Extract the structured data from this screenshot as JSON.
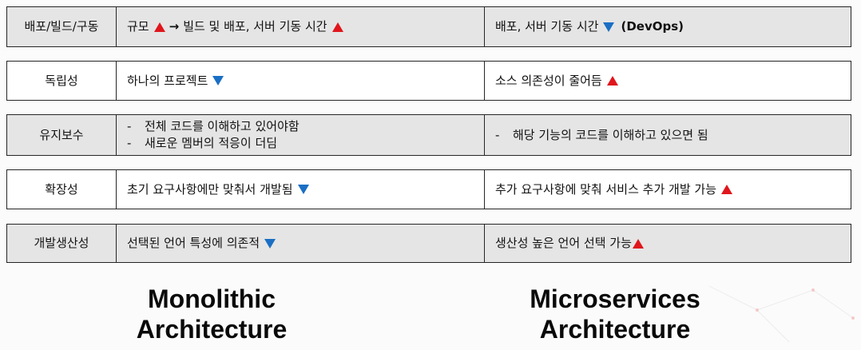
{
  "rows": [
    {
      "label": "배포/빌드/구동",
      "mono": {
        "text": "규모",
        "arrow": "→",
        "text2": "빌드 및 배포, 서버 기동 시간"
      },
      "micro": {
        "text": "배포, 서버 기동 시간",
        "suffix": "(DevOps)"
      }
    },
    {
      "label": "독립성",
      "mono": {
        "text": "하나의 프로젝트"
      },
      "micro": {
        "text": "소스 의존성이 줄어듬"
      }
    },
    {
      "label": "유지보수",
      "mono": {
        "bullets": [
          "전체 코드를 이해하고 있어야함",
          "새로운 멤버의 적응이 더딤"
        ]
      },
      "micro": {
        "bullets": [
          "해당 기능의 코드를 이해하고 있으면 됨"
        ]
      }
    },
    {
      "label": "확장성",
      "mono": {
        "text": "초기 요구사항에만 맞춰서 개발됨"
      },
      "micro": {
        "text": "추가 요구사항에 맞춰 서비스 추가 개발 가능"
      }
    },
    {
      "label": "개발생산성",
      "mono": {
        "text": "선택된 언어 특성에 의존적"
      },
      "micro": {
        "text": "생산성 높은 언어 선택 가능"
      }
    }
  ],
  "bullet_marker": "-",
  "captions": {
    "monolithic": [
      "Monolithic",
      "Architecture"
    ],
    "microservices": [
      "Microservices",
      "Architecture"
    ]
  },
  "colors": {
    "up_triangle": "#e0161c",
    "down_triangle": "#1a6fc4",
    "border": "#262626",
    "header_fill": "#e5e5e5"
  },
  "icons": {
    "increase": "red-up-triangle-icon",
    "decrease": "blue-down-triangle-icon",
    "leads_to": "right-arrow-icon"
  }
}
